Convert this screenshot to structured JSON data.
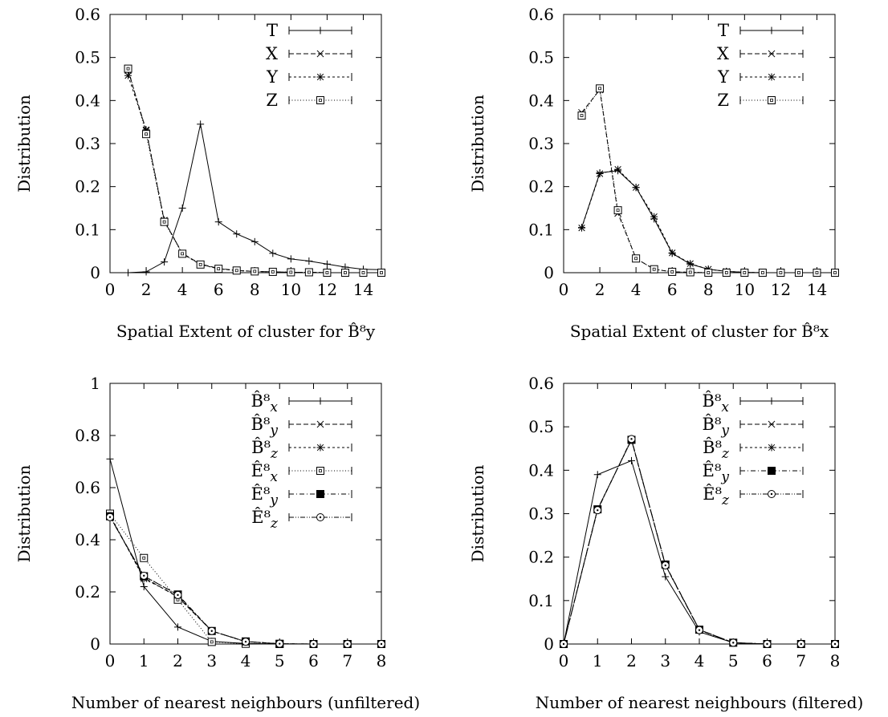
{
  "chart_data": [
    {
      "type": "line",
      "title": "",
      "xlabel": "Spatial Extent of cluster for B̂⁸y",
      "ylabel": "Distribution",
      "xlim": [
        0,
        15
      ],
      "ylim": [
        0,
        0.6
      ],
      "xticks": [
        "0",
        "2",
        "4",
        "6",
        "8",
        "10",
        "12",
        "14"
      ],
      "yticks": [
        "0",
        "0.1",
        "0.2",
        "0.3",
        "0.4",
        "0.5",
        "0.6"
      ],
      "legend_position": "top-right",
      "grid": false,
      "x": [
        1,
        2,
        3,
        4,
        5,
        6,
        7,
        8,
        9,
        10,
        11,
        12,
        13,
        14,
        15
      ],
      "series": [
        {
          "name": "T",
          "marker": "plus",
          "dash": "solid",
          "values": [
            0,
            0.002,
            0.025,
            0.15,
            0.345,
            0.118,
            0.09,
            0.072,
            0.045,
            0.032,
            0.027,
            0.02,
            0.013,
            0.008,
            0.007
          ]
        },
        {
          "name": "X",
          "marker": "cross",
          "dash": "dashed",
          "values": [
            0.47,
            0.33,
            0.12,
            0.045,
            0.02,
            0.01,
            0.005,
            0.003,
            0.002,
            0.001,
            0.001,
            0.0,
            0.0,
            0.0,
            0.0
          ]
        },
        {
          "name": "Y",
          "marker": "star",
          "dash": "short",
          "values": [
            0.458,
            0.332,
            0.122,
            0.044,
            0.019,
            0.009,
            0.005,
            0.003,
            0.002,
            0.001,
            0.001,
            0.0,
            0.0,
            0.0,
            0.0
          ]
        },
        {
          "name": "Z",
          "marker": "square",
          "dash": "dotted",
          "values": [
            0.474,
            0.322,
            0.118,
            0.044,
            0.019,
            0.009,
            0.005,
            0.003,
            0.002,
            0.001,
            0.001,
            0.0,
            0.0,
            0.0,
            0.0
          ]
        }
      ]
    },
    {
      "type": "line",
      "title": "",
      "xlabel": "Spatial Extent of cluster for B̂⁸x",
      "ylabel": "Distribution",
      "xlim": [
        0,
        15
      ],
      "ylim": [
        0,
        0.6
      ],
      "xticks": [
        "0",
        "2",
        "4",
        "6",
        "8",
        "10",
        "12",
        "14"
      ],
      "yticks": [
        "0",
        "0.1",
        "0.2",
        "0.3",
        "0.4",
        "0.5",
        "0.6"
      ],
      "legend_position": "top-right",
      "grid": false,
      "x": [
        1,
        2,
        3,
        4,
        5,
        6,
        7,
        8,
        9,
        10,
        11,
        12,
        13,
        14,
        15
      ],
      "series": [
        {
          "name": "T",
          "marker": "plus",
          "dash": "solid",
          "values": [
            0.105,
            0.232,
            0.237,
            0.198,
            0.125,
            0.045,
            0.02,
            0.008,
            0.003,
            0.001,
            0.0,
            0.0,
            0.0,
            0.0,
            0.0
          ]
        },
        {
          "name": "X",
          "marker": "cross",
          "dash": "dashed",
          "values": [
            0.372,
            0.425,
            0.138,
            0.033,
            0.008,
            0.002,
            0.001,
            0.0,
            0.0,
            0.0,
            0.0,
            0.0,
            0.0,
            0.0,
            0.0
          ]
        },
        {
          "name": "Y",
          "marker": "star",
          "dash": "short",
          "values": [
            0.104,
            0.23,
            0.24,
            0.198,
            0.13,
            0.046,
            0.021,
            0.008,
            0.003,
            0.001,
            0.0,
            0.0,
            0.0,
            0.0,
            0.0
          ]
        },
        {
          "name": "Z",
          "marker": "square",
          "dash": "dotted",
          "values": [
            0.365,
            0.428,
            0.145,
            0.033,
            0.008,
            0.002,
            0.001,
            0.0,
            0.0,
            0.0,
            0.0,
            0.0,
            0.0,
            0.0,
            0.0
          ]
        }
      ]
    },
    {
      "type": "line",
      "title": "",
      "xlabel": "Number of nearest neighbours (unfiltered)",
      "ylabel": "Distribution",
      "xlim": [
        0,
        8
      ],
      "ylim": [
        0,
        1
      ],
      "xticks": [
        "0",
        "1",
        "2",
        "3",
        "4",
        "5",
        "6",
        "7",
        "8"
      ],
      "yticks": [
        "0",
        "0.2",
        "0.4",
        "0.6",
        "0.8",
        "1"
      ],
      "legend_position": "top-right",
      "grid": false,
      "x": [
        0,
        1,
        2,
        3,
        4,
        5,
        6,
        7,
        8
      ],
      "series": [
        {
          "name": "B̂⁸x",
          "marker": "plus",
          "dash": "solid",
          "values": [
            0.71,
            0.22,
            0.065,
            0.01,
            0.002,
            0.0,
            0.0,
            0.0,
            0.0
          ]
        },
        {
          "name": "B̂⁸y",
          "marker": "cross",
          "dash": "dashed",
          "values": [
            0.49,
            0.255,
            0.18,
            0.05,
            0.009,
            0.001,
            0.0,
            0.0,
            0.0
          ]
        },
        {
          "name": "B̂⁸z",
          "marker": "star",
          "dash": "short",
          "values": [
            0.495,
            0.25,
            0.185,
            0.05,
            0.009,
            0.001,
            0.0,
            0.0,
            0.0
          ]
        },
        {
          "name": "Ê⁸x",
          "marker": "square",
          "dash": "dotted",
          "values": [
            0.5,
            0.33,
            0.17,
            0.008,
            0.001,
            0.0,
            0.0,
            0.0,
            0.0
          ]
        },
        {
          "name": "Ê⁸y",
          "marker": "filled-square",
          "dash": "dashdot",
          "values": [
            0.49,
            0.26,
            0.19,
            0.05,
            0.01,
            0.001,
            0.0,
            0.0,
            0.0
          ]
        },
        {
          "name": "Ê⁸z",
          "marker": "circle",
          "dash": "dashdotdot",
          "values": [
            0.487,
            0.262,
            0.188,
            0.05,
            0.009,
            0.001,
            0.0,
            0.0,
            0.0
          ]
        }
      ]
    },
    {
      "type": "line",
      "title": "",
      "xlabel": "Number of nearest neighbours (filtered)",
      "ylabel": "Distribution",
      "xlim": [
        0,
        8
      ],
      "ylim": [
        0,
        0.6
      ],
      "xticks": [
        "0",
        "1",
        "2",
        "3",
        "4",
        "5",
        "6",
        "7",
        "8"
      ],
      "yticks": [
        "0",
        "0.1",
        "0.2",
        "0.3",
        "0.4",
        "0.5",
        "0.6"
      ],
      "legend_position": "top-right",
      "grid": false,
      "x": [
        0,
        1,
        2,
        3,
        4,
        5,
        6,
        7,
        8
      ],
      "series": [
        {
          "name": "B̂⁸x",
          "marker": "plus",
          "dash": "solid",
          "values": [
            0.0,
            0.39,
            0.422,
            0.155,
            0.028,
            0.003,
            0.0,
            0.0,
            0.0
          ]
        },
        {
          "name": "B̂⁸y",
          "marker": "cross",
          "dash": "dashed",
          "values": [
            0.0,
            0.31,
            0.47,
            0.182,
            0.033,
            0.003,
            0.0,
            0.0,
            0.0
          ]
        },
        {
          "name": "B̂⁸z",
          "marker": "star",
          "dash": "short",
          "values": [
            0.0,
            0.31,
            0.47,
            0.182,
            0.033,
            0.003,
            0.0,
            0.0,
            0.0
          ]
        },
        {
          "name": "Ê⁸y",
          "marker": "filled-square",
          "dash": "dashdot",
          "values": [
            0.0,
            0.31,
            0.47,
            0.183,
            0.033,
            0.003,
            0.0,
            0.0,
            0.0
          ]
        },
        {
          "name": "Ê⁸z",
          "marker": "circle",
          "dash": "dashdotdot",
          "values": [
            0.0,
            0.308,
            0.472,
            0.181,
            0.032,
            0.003,
            0.0,
            0.0,
            0.0
          ]
        }
      ]
    }
  ]
}
